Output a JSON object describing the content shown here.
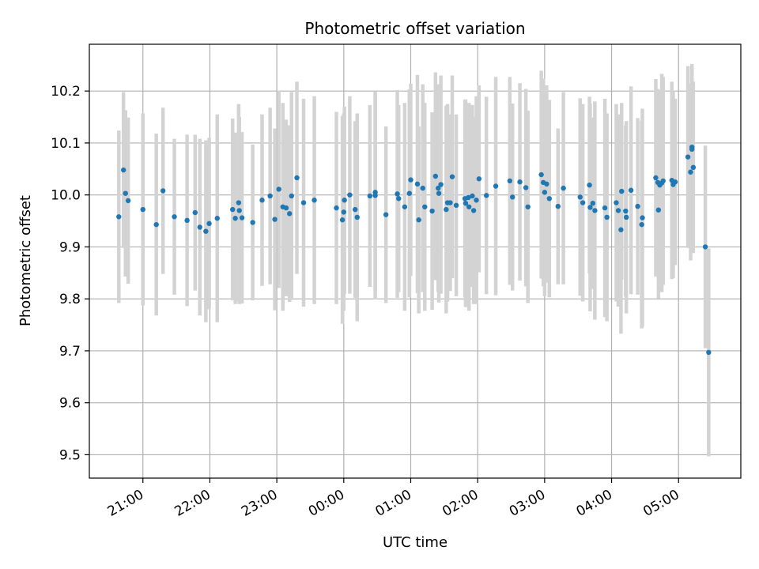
{
  "chart_data": {
    "type": "scatter",
    "title": "Photometric offset variation",
    "xlabel": "UTC time",
    "ylabel": "Photometric offset",
    "x_unit": "hours after 20:00 UTC (times after midnight continue past 24)",
    "xlim": [
      20.2,
      29.93
    ],
    "ylim": [
      9.455,
      10.29
    ],
    "grid": true,
    "xticks": [
      {
        "value": 21,
        "label": "21:00"
      },
      {
        "value": 22,
        "label": "22:00"
      },
      {
        "value": 23,
        "label": "23:00"
      },
      {
        "value": 24,
        "label": "00:00"
      },
      {
        "value": 25,
        "label": "01:00"
      },
      {
        "value": 26,
        "label": "02:00"
      },
      {
        "value": 27,
        "label": "03:00"
      },
      {
        "value": 28,
        "label": "04:00"
      },
      {
        "value": 29,
        "label": "05:00"
      }
    ],
    "yticks": [
      {
        "value": 9.5,
        "label": "9.5"
      },
      {
        "value": 9.6,
        "label": "9.6"
      },
      {
        "value": 9.7,
        "label": "9.7"
      },
      {
        "value": 9.8,
        "label": "9.8"
      },
      {
        "value": 9.9,
        "label": "9.9"
      },
      {
        "value": 10.0,
        "label": "10.0"
      },
      {
        "value": 10.1,
        "label": "10.1"
      },
      {
        "value": 10.2,
        "label": "10.2"
      }
    ],
    "colors": {
      "points": "#1f77b4",
      "errorbars": "#d3d3d3",
      "grid": "#b0b0b0"
    },
    "series": [
      {
        "points": [
          [
            20.64,
            9.958,
            0.166
          ],
          [
            20.71,
            10.048,
            0.15
          ],
          [
            20.74,
            10.003,
            0.16
          ],
          [
            20.78,
            9.989,
            0.16
          ],
          [
            21.0,
            9.972,
            0.185
          ],
          [
            21.2,
            9.943,
            0.175
          ],
          [
            21.3,
            10.008,
            0.16
          ],
          [
            21.47,
            9.958,
            0.15
          ],
          [
            21.66,
            9.951,
            0.165
          ],
          [
            21.78,
            9.966,
            0.15
          ],
          [
            21.85,
            9.938,
            0.17
          ],
          [
            21.94,
            9.93,
            0.175
          ],
          [
            21.99,
            9.945,
            0.165
          ],
          [
            22.11,
            9.955,
            0.2
          ],
          [
            22.34,
            9.972,
            0.175
          ],
          [
            22.38,
            9.955,
            0.165
          ],
          [
            22.43,
            9.985,
            0.19
          ],
          [
            22.44,
            9.97,
            0.18
          ],
          [
            22.48,
            9.956,
            0.165
          ],
          [
            22.64,
            9.947,
            0.15
          ],
          [
            22.78,
            9.99,
            0.165
          ],
          [
            22.9,
            9.998,
            0.17
          ],
          [
            22.97,
            9.953,
            0.175
          ],
          [
            23.03,
            10.011,
            0.19
          ],
          [
            23.09,
            9.977,
            0.2
          ],
          [
            23.14,
            9.975,
            0.17
          ],
          [
            23.19,
            9.964,
            0.17
          ],
          [
            23.22,
            9.998,
            0.2
          ],
          [
            23.3,
            10.033,
            0.185
          ],
          [
            23.4,
            9.985,
            0.2
          ],
          [
            23.56,
            9.99,
            0.2
          ],
          [
            23.89,
            9.975,
            0.185
          ],
          [
            23.98,
            9.952,
            0.2
          ],
          [
            24.0,
            9.967,
            0.19
          ],
          [
            24.01,
            9.99,
            0.18
          ],
          [
            24.09,
            10.0,
            0.19
          ],
          [
            24.17,
            9.972,
            0.17
          ],
          [
            24.2,
            9.957,
            0.2
          ],
          [
            24.39,
            9.998,
            0.175
          ],
          [
            24.47,
            10.005,
            0.19
          ],
          [
            24.47,
            9.999,
            0.2
          ],
          [
            24.63,
            9.962,
            0.17
          ],
          [
            24.8,
            10.002,
            0.2
          ],
          [
            24.82,
            9.993,
            0.18
          ],
          [
            24.91,
            9.977,
            0.2
          ],
          [
            24.98,
            10.003,
            0.2
          ],
          [
            25.0,
            10.029,
            0.185
          ],
          [
            25.1,
            10.021,
            0.21
          ],
          [
            25.12,
            9.952,
            0.18
          ],
          [
            25.18,
            10.013,
            0.2
          ],
          [
            25.21,
            9.977,
            0.2
          ],
          [
            25.32,
            9.969,
            0.19
          ],
          [
            25.37,
            10.036,
            0.2
          ],
          [
            25.41,
            10.013,
            0.2
          ],
          [
            25.42,
            10.003,
            0.21
          ],
          [
            25.45,
            10.02,
            0.21
          ],
          [
            25.53,
            9.972,
            0.2
          ],
          [
            25.55,
            9.985,
            0.19
          ],
          [
            25.59,
            9.985,
            0.17
          ],
          [
            25.62,
            10.035,
            0.195
          ],
          [
            25.68,
            9.98,
            0.175
          ],
          [
            25.81,
            9.993,
            0.19
          ],
          [
            25.82,
            9.984,
            0.2
          ],
          [
            25.86,
            9.995,
            0.18
          ],
          [
            25.87,
            9.977,
            0.2
          ],
          [
            25.92,
            9.998,
            0.175
          ],
          [
            25.94,
            9.97,
            0.18
          ],
          [
            25.98,
            9.99,
            0.2
          ],
          [
            26.02,
            10.031,
            0.18
          ],
          [
            26.13,
            9.999,
            0.19
          ],
          [
            26.27,
            10.017,
            0.21
          ],
          [
            26.48,
            10.027,
            0.2
          ],
          [
            26.52,
            9.996,
            0.18
          ],
          [
            26.63,
            10.025,
            0.19
          ],
          [
            26.72,
            10.014,
            0.19
          ],
          [
            26.75,
            9.977,
            0.185
          ],
          [
            26.95,
            10.039,
            0.2
          ],
          [
            26.98,
            10.024,
            0.2
          ],
          [
            27.0,
            10.005,
            0.2
          ],
          [
            27.03,
            10.021,
            0.19
          ],
          [
            27.07,
            9.993,
            0.19
          ],
          [
            27.2,
            9.978,
            0.15
          ],
          [
            27.28,
            10.013,
            0.185
          ],
          [
            27.53,
            9.996,
            0.19
          ],
          [
            27.57,
            9.985,
            0.19
          ],
          [
            27.67,
            10.019,
            0.17
          ],
          [
            27.68,
            9.976,
            0.2
          ],
          [
            27.72,
            9.984,
            0.165
          ],
          [
            27.75,
            9.97,
            0.21
          ],
          [
            27.9,
            9.975,
            0.21
          ],
          [
            27.93,
            9.957,
            0.2
          ],
          [
            28.07,
            9.985,
            0.19
          ],
          [
            28.1,
            9.97,
            0.185
          ],
          [
            28.14,
            9.933,
            0.2
          ],
          [
            28.15,
            10.007,
            0.17
          ],
          [
            28.21,
            9.969,
            0.165
          ],
          [
            28.22,
            9.957,
            0.185
          ],
          [
            28.29,
            10.009,
            0.2
          ],
          [
            28.39,
            9.978,
            0.17
          ],
          [
            28.45,
            9.943,
            0.2
          ],
          [
            28.46,
            9.956,
            0.21
          ],
          [
            28.66,
            10.033,
            0.19
          ],
          [
            28.69,
            10.024,
            0.18
          ],
          [
            28.7,
            9.971,
            0.17
          ],
          [
            28.72,
            10.019,
            0.18
          ],
          [
            28.75,
            10.023,
            0.21
          ],
          [
            28.77,
            10.027,
            0.2
          ],
          [
            28.9,
            10.028,
            0.19
          ],
          [
            28.92,
            10.02,
            0.18
          ],
          [
            28.95,
            10.025,
            0.16
          ],
          [
            29.14,
            10.073,
            0.175
          ],
          [
            29.18,
            10.044,
            0.17
          ],
          [
            29.2,
            10.092,
            0.16
          ],
          [
            29.2,
            10.088,
            0.16
          ],
          [
            29.22,
            10.053,
            0.165
          ],
          [
            29.4,
            9.9,
            0.195
          ],
          [
            29.45,
            9.697,
            0.2
          ]
        ]
      }
    ]
  }
}
